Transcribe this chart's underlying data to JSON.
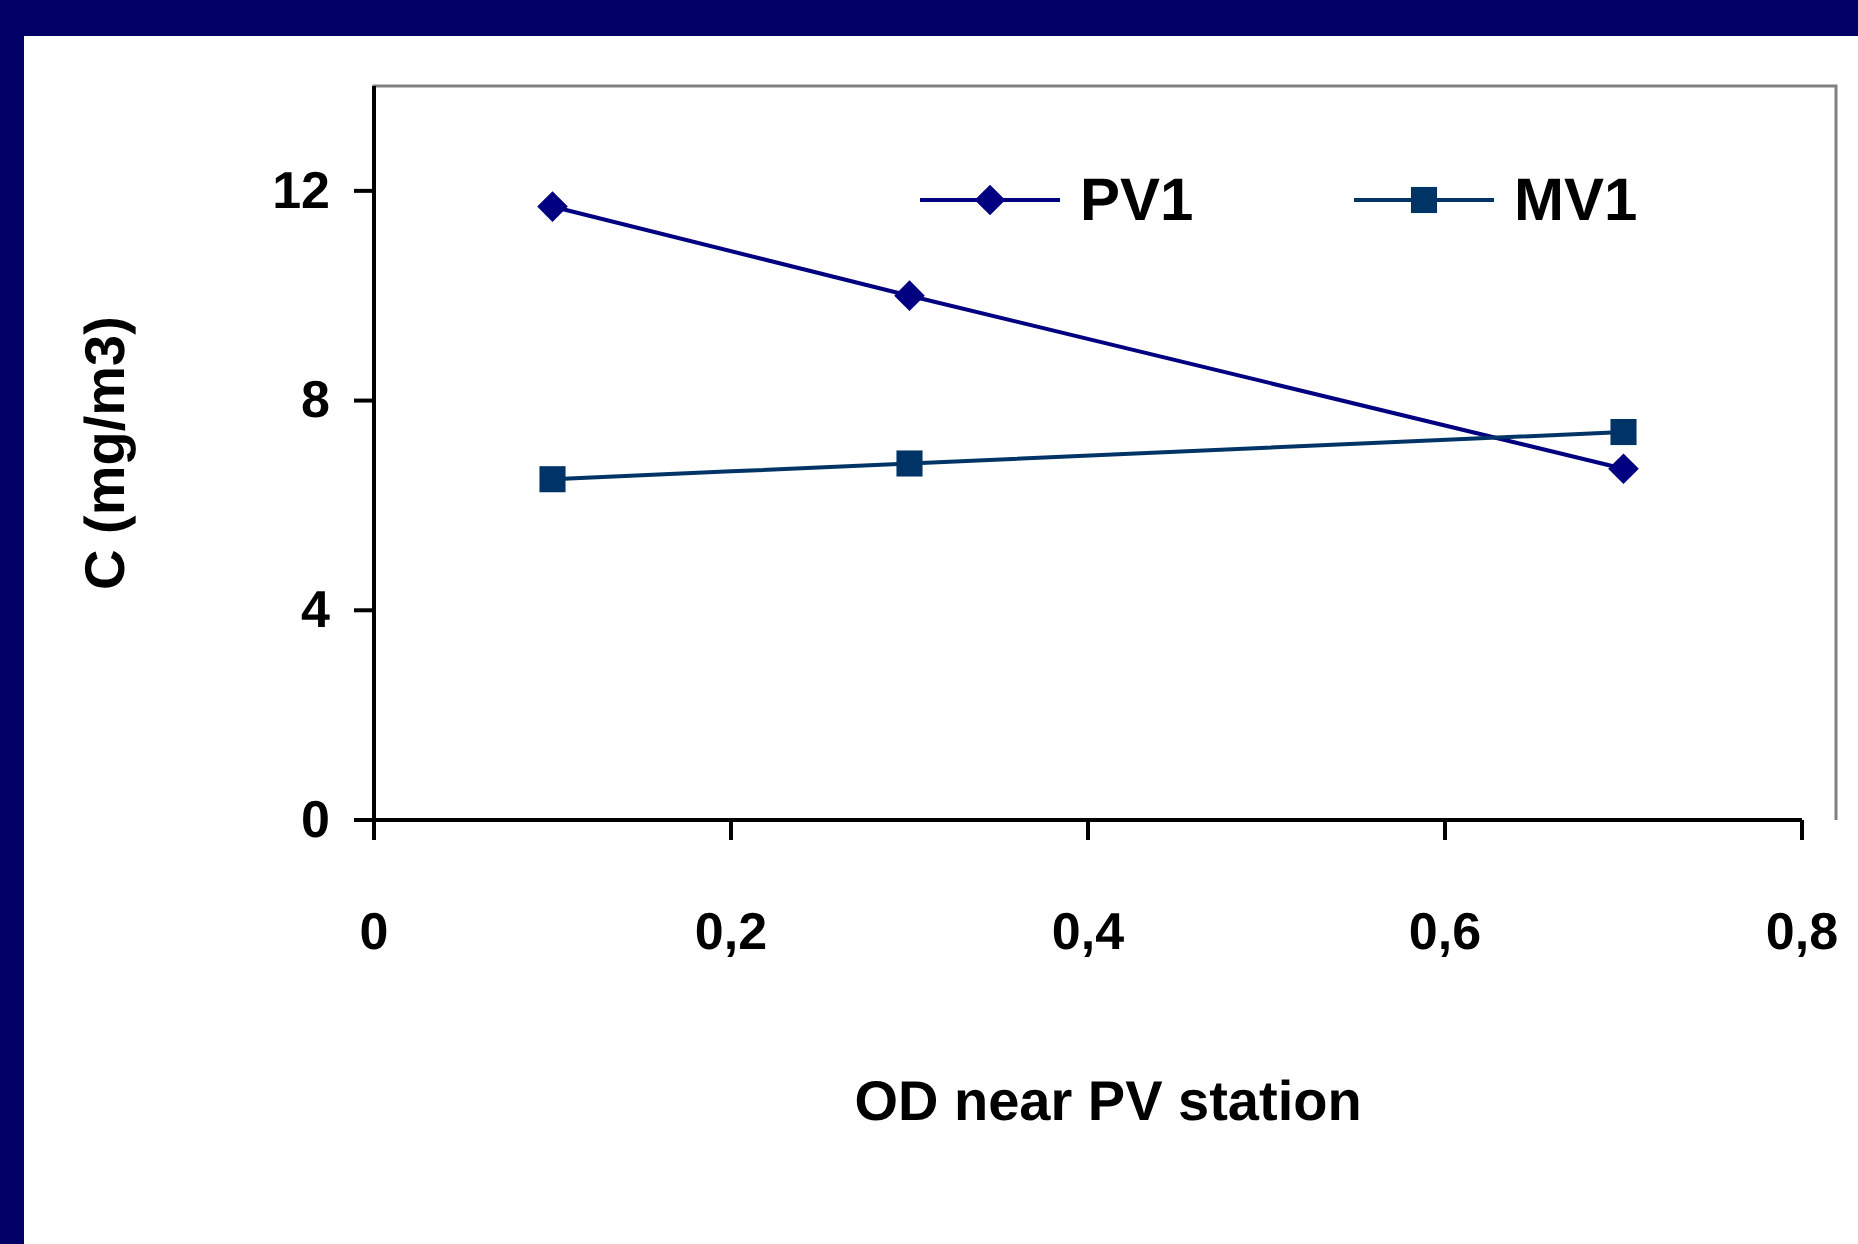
{
  "chart_data": {
    "type": "line",
    "xlabel": "OD near PV station",
    "ylabel": "C (mg/m3)",
    "xlim": [
      0,
      0.8
    ],
    "xticks": [
      0,
      {
        "value": 0.2,
        "label": "0,2"
      },
      {
        "value": 0.4,
        "label": "0,4"
      },
      {
        "value": 0.6,
        "label": "0,6"
      },
      {
        "value": 0.8,
        "label": "0,8"
      }
    ],
    "ylim": [
      0,
      14
    ],
    "yticks": [
      0,
      4,
      8,
      12
    ],
    "grid": false,
    "legend": "top right",
    "series": [
      {
        "name": "PV1",
        "color": "#000080",
        "marker": "diamond",
        "x": [
          0.1,
          0.3,
          0.7
        ],
        "values": [
          11.7,
          10.0,
          6.7
        ]
      },
      {
        "name": "MV1",
        "color": "#003366",
        "marker": "square",
        "x": [
          0.1,
          0.3,
          0.7
        ],
        "values": [
          6.5,
          6.8,
          7.4
        ]
      }
    ]
  }
}
